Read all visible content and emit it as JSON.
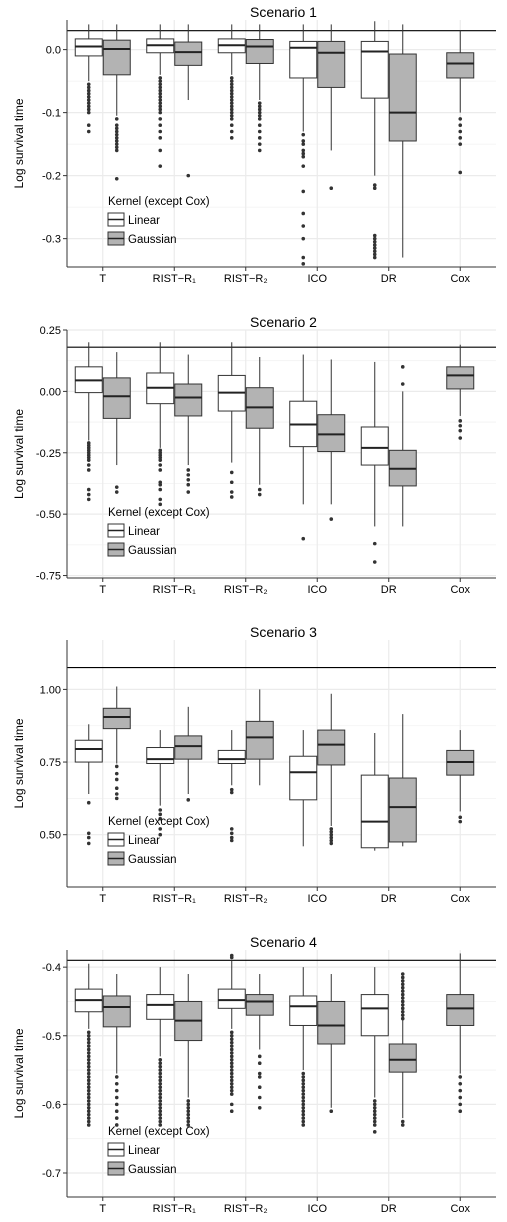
{
  "legend": {
    "title": "Kernel (except Cox)",
    "items": [
      {
        "label": "Linear",
        "fill": "#ffffff"
      },
      {
        "label": "Gaussian",
        "fill": "#b3b3b3"
      }
    ]
  },
  "colors": {
    "linear": "#ffffff",
    "gaussian": "#b3b3b3",
    "grid": "#ebebeb",
    "stroke": "#333333"
  },
  "chart_data": [
    {
      "type": "box",
      "title": "Scenario 1",
      "ylabel": "Log survival time",
      "categories": [
        "T",
        "RIST−R₁",
        "RIST−R₂",
        "ICO",
        "DR",
        "Cox"
      ],
      "yticks": [
        0.0,
        -0.1,
        -0.2,
        -0.3
      ],
      "ytick_labels": [
        "0.0",
        "-0.1",
        "-0.2",
        "-0.3"
      ],
      "ylim": [
        -0.345,
        0.047
      ],
      "reference_line": 0.03,
      "legend_position": "bottom-left",
      "series": [
        {
          "name": "Linear",
          "boxes": [
            {
              "q1": -0.01,
              "median": 0.005,
              "q3": 0.017,
              "wlo": -0.05,
              "whi": 0.04,
              "outliers": [
                -0.055,
                -0.06,
                -0.065,
                -0.07,
                -0.075,
                -0.08,
                -0.085,
                -0.09,
                -0.095,
                -0.1,
                -0.12,
                -0.13
              ]
            },
            {
              "q1": -0.005,
              "median": 0.007,
              "q3": 0.017,
              "wlo": -0.04,
              "whi": 0.04,
              "outliers": [
                -0.045,
                -0.05,
                -0.055,
                -0.06,
                -0.065,
                -0.07,
                -0.075,
                -0.08,
                -0.085,
                -0.09,
                -0.095,
                -0.1,
                -0.11,
                -0.12,
                -0.13,
                -0.14,
                -0.16,
                -0.185
              ]
            },
            {
              "q1": -0.005,
              "median": 0.007,
              "q3": 0.017,
              "wlo": -0.04,
              "whi": 0.04,
              "outliers": [
                -0.045,
                -0.05,
                -0.055,
                -0.06,
                -0.065,
                -0.07,
                -0.075,
                -0.08,
                -0.085,
                -0.09,
                -0.095,
                -0.1,
                -0.105,
                -0.11,
                -0.12,
                -0.13,
                -0.14
              ]
            },
            {
              "q1": -0.045,
              "median": 0.003,
              "q3": 0.013,
              "wlo": -0.13,
              "whi": 0.04,
              "outliers": [
                -0.135,
                -0.145,
                -0.15,
                -0.16,
                -0.165,
                -0.17,
                -0.185,
                -0.225,
                -0.26,
                -0.28,
                -0.3,
                -0.33,
                -0.34
              ]
            },
            {
              "q1": -0.077,
              "median": -0.003,
              "q3": 0.013,
              "wlo": -0.2,
              "whi": 0.045,
              "outliers": [
                -0.215,
                -0.22,
                -0.295,
                -0.3,
                -0.305,
                -0.31,
                -0.315,
                -0.32,
                -0.325,
                -0.33
              ]
            },
            null
          ]
        },
        {
          "name": "Gaussian",
          "boxes": [
            {
              "q1": -0.04,
              "median": 0.001,
              "q3": 0.015,
              "wlo": -0.105,
              "whi": 0.04,
              "outliers": [
                -0.11,
                -0.12,
                -0.125,
                -0.13,
                -0.135,
                -0.14,
                -0.145,
                -0.15,
                -0.155,
                -0.16,
                -0.205
              ]
            },
            {
              "q1": -0.025,
              "median": -0.004,
              "q3": 0.012,
              "wlo": -0.08,
              "whi": 0.04,
              "outliers": [
                -0.2
              ]
            },
            {
              "q1": -0.022,
              "median": 0.005,
              "q3": 0.016,
              "wlo": -0.08,
              "whi": 0.04,
              "outliers": [
                -0.085,
                -0.09,
                -0.095,
                -0.1,
                -0.105,
                -0.11,
                -0.12,
                -0.13,
                -0.14,
                -0.15,
                -0.16
              ]
            },
            {
              "q1": -0.06,
              "median": -0.005,
              "q3": 0.013,
              "wlo": -0.16,
              "whi": 0.04,
              "outliers": [
                -0.22
              ]
            },
            {
              "q1": -0.145,
              "median": -0.1,
              "q3": -0.007,
              "wlo": -0.33,
              "whi": 0.04,
              "outliers": []
            },
            {
              "q1": -0.045,
              "median": -0.022,
              "q3": -0.005,
              "wlo": -0.1,
              "whi": 0.03,
              "outliers": [
                -0.11,
                -0.12,
                -0.13,
                -0.14,
                -0.15,
                -0.195
              ]
            }
          ]
        }
      ]
    },
    {
      "type": "box",
      "title": "Scenario 2",
      "ylabel": "Log survival time",
      "categories": [
        "T",
        "RIST−R₁",
        "RIST−R₂",
        "ICO",
        "DR",
        "Cox"
      ],
      "yticks": [
        0.25,
        0.0,
        -0.25,
        -0.5,
        -0.75
      ],
      "ytick_labels": [
        "0.25",
        "0.00",
        "-0.25",
        "-0.50",
        "-0.75"
      ],
      "ylim": [
        -0.76,
        0.25
      ],
      "reference_line": 0.18,
      "legend_position": "bottom-left",
      "series": [
        {
          "name": "Linear",
          "boxes": [
            {
              "q1": -0.005,
              "median": 0.045,
              "q3": 0.1,
              "wlo": -0.2,
              "whi": 0.2,
              "outliers": [
                -0.21,
                -0.22,
                -0.23,
                -0.24,
                -0.25,
                -0.26,
                -0.27,
                -0.28,
                -0.3,
                -0.32,
                -0.4,
                -0.42,
                -0.44
              ]
            },
            {
              "q1": -0.05,
              "median": 0.015,
              "q3": 0.075,
              "wlo": -0.23,
              "whi": 0.2,
              "outliers": [
                -0.24,
                -0.25,
                -0.26,
                -0.27,
                -0.28,
                -0.3,
                -0.32,
                -0.37,
                -0.38,
                -0.4,
                -0.44,
                -0.46
              ]
            },
            {
              "q1": -0.08,
              "median": -0.005,
              "q3": 0.065,
              "wlo": -0.29,
              "whi": 0.2,
              "outliers": [
                -0.33,
                -0.37,
                -0.41,
                -0.43
              ]
            },
            {
              "q1": -0.225,
              "median": -0.135,
              "q3": -0.04,
              "wlo": -0.46,
              "whi": 0.15,
              "outliers": [
                -0.6
              ]
            },
            {
              "q1": -0.3,
              "median": -0.23,
              "q3": -0.145,
              "wlo": -0.55,
              "whi": 0.12,
              "outliers": [
                -0.62,
                -0.695
              ]
            },
            null
          ]
        },
        {
          "name": "Gaussian",
          "boxes": [
            {
              "q1": -0.11,
              "median": -0.02,
              "q3": 0.055,
              "wlo": -0.3,
              "whi": 0.16,
              "outliers": [
                -0.39,
                -0.41
              ]
            },
            {
              "q1": -0.1,
              "median": -0.025,
              "q3": 0.03,
              "wlo": -0.3,
              "whi": 0.15,
              "outliers": [
                -0.32,
                -0.34,
                -0.36,
                -0.38,
                -0.41
              ]
            },
            {
              "q1": -0.15,
              "median": -0.065,
              "q3": 0.015,
              "wlo": -0.38,
              "whi": 0.14,
              "outliers": [
                -0.4,
                -0.42
              ]
            },
            {
              "q1": -0.245,
              "median": -0.175,
              "q3": -0.095,
              "wlo": -0.46,
              "whi": 0.13,
              "outliers": [
                -0.52
              ]
            },
            {
              "q1": -0.385,
              "median": -0.315,
              "q3": -0.24,
              "wlo": -0.55,
              "whi": 0.0,
              "outliers": [
                0.03,
                0.1
              ]
            },
            {
              "q1": 0.01,
              "median": 0.065,
              "q3": 0.1,
              "wlo": -0.1,
              "whi": 0.19,
              "outliers": [
                -0.12,
                -0.14,
                -0.16,
                -0.19
              ]
            }
          ]
        }
      ]
    },
    {
      "type": "box",
      "title": "Scenario 3",
      "ylabel": "Log survival time",
      "categories": [
        "T",
        "RIST−R₁",
        "RIST−R₂",
        "ICO",
        "DR",
        "Cox"
      ],
      "yticks": [
        1.0,
        0.75,
        0.5
      ],
      "ytick_labels": [
        "1.00",
        "0.75",
        "0.50"
      ],
      "ylim": [
        0.32,
        1.17
      ],
      "reference_line": 1.075,
      "legend_position": "bottom-left",
      "series": [
        {
          "name": "Linear",
          "boxes": [
            {
              "q1": 0.75,
              "median": 0.795,
              "q3": 0.825,
              "wlo": 0.64,
              "whi": 0.88,
              "outliers": [
                0.61,
                0.505,
                0.49,
                0.47
              ]
            },
            {
              "q1": 0.745,
              "median": 0.76,
              "q3": 0.8,
              "wlo": 0.6,
              "whi": 0.86,
              "outliers": [
                0.585,
                0.57,
                0.555,
                0.52,
                0.5
              ]
            },
            {
              "q1": 0.745,
              "median": 0.76,
              "q3": 0.79,
              "wlo": 0.67,
              "whi": 0.86,
              "outliers": [
                0.655,
                0.645,
                0.52,
                0.505,
                0.49,
                0.48
              ]
            },
            {
              "q1": 0.62,
              "median": 0.715,
              "q3": 0.77,
              "wlo": 0.46,
              "whi": 0.86,
              "outliers": []
            },
            {
              "q1": 0.455,
              "median": 0.545,
              "q3": 0.705,
              "wlo": 0.445,
              "whi": 0.85,
              "outliers": []
            },
            null
          ]
        },
        {
          "name": "Gaussian",
          "boxes": [
            {
              "q1": 0.865,
              "median": 0.905,
              "q3": 0.935,
              "wlo": 0.745,
              "whi": 1.01,
              "outliers": [
                0.735,
                0.71,
                0.69,
                0.66,
                0.64,
                0.625
              ]
            },
            {
              "q1": 0.76,
              "median": 0.805,
              "q3": 0.84,
              "wlo": 0.64,
              "whi": 0.94,
              "outliers": [
                0.62
              ]
            },
            {
              "q1": 0.76,
              "median": 0.835,
              "q3": 0.89,
              "wlo": 0.67,
              "whi": 1.0,
              "outliers": []
            },
            {
              "q1": 0.74,
              "median": 0.81,
              "q3": 0.86,
              "wlo": 0.53,
              "whi": 0.985,
              "outliers": [
                0.52,
                0.51,
                0.5,
                0.49,
                0.48,
                0.47
              ]
            },
            {
              "q1": 0.475,
              "median": 0.595,
              "q3": 0.695,
              "wlo": 0.46,
              "whi": 0.915,
              "outliers": []
            },
            {
              "q1": 0.705,
              "median": 0.75,
              "q3": 0.79,
              "wlo": 0.58,
              "whi": 0.86,
              "outliers": [
                0.56,
                0.545
              ]
            }
          ]
        }
      ]
    },
    {
      "type": "box",
      "title": "Scenario 4",
      "ylabel": "Log survival time",
      "categories": [
        "T",
        "RIST−R₁",
        "RIST−R₂",
        "ICO",
        "DR",
        "Cox"
      ],
      "yticks": [
        -0.4,
        -0.5,
        -0.6,
        -0.7
      ],
      "ytick_labels": [
        "-0.4",
        "-0.5",
        "-0.6",
        "-0.7"
      ],
      "ylim": [
        -0.735,
        -0.375
      ],
      "reference_line": -0.39,
      "legend_position": "bottom-left",
      "series": [
        {
          "name": "Linear",
          "boxes": [
            {
              "q1": -0.465,
              "median": -0.448,
              "q3": -0.432,
              "wlo": -0.49,
              "whi": -0.395,
              "outliers": [
                -0.495,
                -0.5,
                -0.505,
                -0.51,
                -0.515,
                -0.52,
                -0.525,
                -0.53,
                -0.535,
                -0.54,
                -0.545,
                -0.55,
                -0.555,
                -0.56,
                -0.565,
                -0.57,
                -0.575,
                -0.58,
                -0.585,
                -0.59,
                -0.595,
                -0.6,
                -0.605,
                -0.61,
                -0.615,
                -0.62,
                -0.625,
                -0.63
              ]
            },
            {
              "q1": -0.476,
              "median": -0.455,
              "q3": -0.44,
              "wlo": -0.53,
              "whi": -0.4,
              "outliers": [
                -0.535,
                -0.54,
                -0.545,
                -0.55,
                -0.555,
                -0.56,
                -0.565,
                -0.57,
                -0.575,
                -0.58,
                -0.585,
                -0.59,
                -0.595,
                -0.6,
                -0.605,
                -0.61,
                -0.615,
                -0.62,
                -0.625,
                -0.63
              ]
            },
            {
              "q1": -0.46,
              "median": -0.448,
              "q3": -0.432,
              "wlo": -0.49,
              "whi": -0.39,
              "outliers": [
                -0.383,
                -0.386,
                -0.495,
                -0.5,
                -0.505,
                -0.51,
                -0.515,
                -0.52,
                -0.525,
                -0.53,
                -0.535,
                -0.54,
                -0.545,
                -0.55,
                -0.555,
                -0.56,
                -0.565,
                -0.57,
                -0.575,
                -0.58,
                -0.585,
                -0.6,
                -0.61
              ]
            },
            {
              "q1": -0.485,
              "median": -0.457,
              "q3": -0.442,
              "wlo": -0.55,
              "whi": -0.4,
              "outliers": [
                -0.555,
                -0.56,
                -0.565,
                -0.57,
                -0.575,
                -0.58,
                -0.585,
                -0.59,
                -0.595,
                -0.6,
                -0.605,
                -0.61,
                -0.615,
                -0.62,
                -0.625,
                -0.63
              ]
            },
            {
              "q1": -0.5,
              "median": -0.46,
              "q3": -0.44,
              "wlo": -0.59,
              "whi": -0.4,
              "outliers": [
                -0.595,
                -0.6,
                -0.605,
                -0.61,
                -0.615,
                -0.62,
                -0.625,
                -0.63,
                -0.64
              ]
            },
            null
          ]
        },
        {
          "name": "Gaussian",
          "boxes": [
            {
              "q1": -0.487,
              "median": -0.458,
              "q3": -0.442,
              "wlo": -0.555,
              "whi": -0.41,
              "outliers": [
                -0.56,
                -0.57,
                -0.58,
                -0.59,
                -0.6,
                -0.61,
                -0.62,
                -0.63
              ]
            },
            {
              "q1": -0.507,
              "median": -0.478,
              "q3": -0.45,
              "wlo": -0.59,
              "whi": -0.41,
              "outliers": [
                -0.595,
                -0.6,
                -0.605,
                -0.61,
                -0.615,
                -0.62,
                -0.625,
                -0.63
              ]
            },
            {
              "q1": -0.47,
              "median": -0.45,
              "q3": -0.44,
              "wlo": -0.52,
              "whi": -0.41,
              "outliers": [
                -0.53,
                -0.54,
                -0.555,
                -0.56,
                -0.575,
                -0.59,
                -0.605
              ]
            },
            {
              "q1": -0.512,
              "median": -0.485,
              "q3": -0.45,
              "wlo": -0.605,
              "whi": -0.41,
              "outliers": [
                -0.61
              ]
            },
            {
              "q1": -0.553,
              "median": -0.535,
              "q3": -0.512,
              "wlo": -0.62,
              "whi": -0.42,
              "outliers": [
                -0.41,
                -0.415,
                -0.42,
                -0.425,
                -0.43,
                -0.435,
                -0.44,
                -0.445,
                -0.45,
                -0.455,
                -0.46,
                -0.465,
                -0.47,
                -0.475,
                -0.625,
                -0.63
              ]
            },
            {
              "q1": -0.485,
              "median": -0.46,
              "q3": -0.44,
              "wlo": -0.555,
              "whi": -0.38,
              "outliers": [
                -0.56,
                -0.57,
                -0.58,
                -0.59,
                -0.6,
                -0.61
              ]
            }
          ]
        }
      ]
    }
  ]
}
